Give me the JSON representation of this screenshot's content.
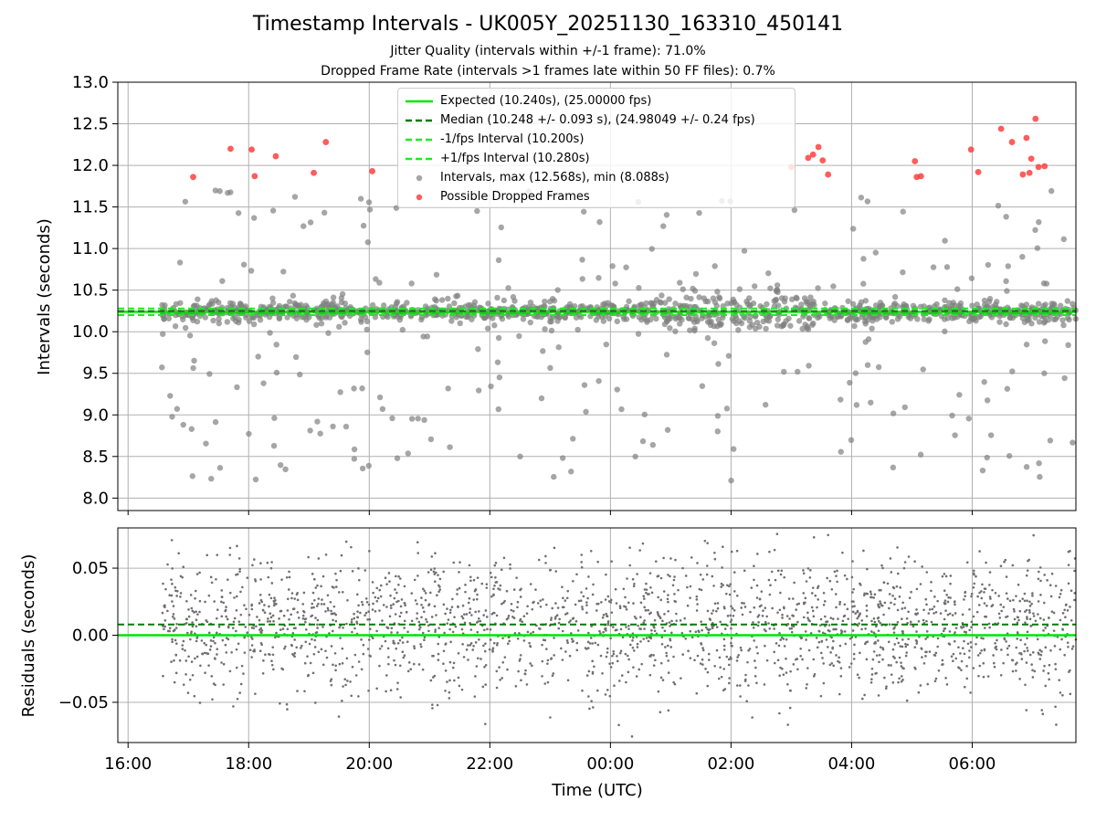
{
  "title": "Timestamp Intervals - UK005Y_20251130_163310_450141",
  "subtitle_jitter": "Jitter Quality (intervals within +/-1 frame): 71.0%",
  "subtitle_dropped": "Dropped Frame Rate (intervals >1 frames late within 50 FF files): 0.7%",
  "colors": {
    "expected": "#00e600",
    "median": "#007a00",
    "interval_bounds": "#22e822",
    "points": "#808080",
    "dropped": "#ff3333",
    "grid": "#b0b0b0"
  },
  "legend": [
    {
      "label": "Expected (10.240s), (25.00000 fps)",
      "style": "solid-line",
      "color": "#00e600"
    },
    {
      "label": "Median (10.248 +/- 0.093 s), (24.98049 +/- 0.24 fps)",
      "style": "dashed-line",
      "color": "#007a00"
    },
    {
      "label": "-1/fps Interval (10.200s)",
      "style": "dashed-line",
      "color": "#22e822"
    },
    {
      "label": "+1/fps Interval (10.280s)",
      "style": "dashed-line",
      "color": "#22e822"
    },
    {
      "label": "Intervals, max (12.568s), min (8.088s)",
      "style": "marker",
      "color": "#808080"
    },
    {
      "label": "Possible Dropped Frames",
      "style": "marker",
      "color": "#ff3333"
    }
  ],
  "chart_data": [
    {
      "type": "scatter",
      "title": "Timestamp Intervals - UK005Y_20251130_163310_450141",
      "xlabel": "",
      "ylabel": "Intervals (seconds)",
      "xlim_hours": [
        15.83,
        31.72
      ],
      "ylim": [
        7.85,
        13.0
      ],
      "yticks": [
        8.0,
        8.5,
        9.0,
        9.5,
        10.0,
        10.5,
        11.0,
        11.5,
        12.0,
        12.5,
        13.0
      ],
      "ytick_labels": [
        "8.0",
        "8.5",
        "9.0",
        "9.5",
        "10.0",
        "10.5",
        "11.0",
        "11.5",
        "12.0",
        "12.5",
        "13.0"
      ],
      "xticks_hours": [
        16,
        18,
        20,
        22,
        24,
        26,
        28,
        30
      ],
      "grid": true,
      "legend_position": "top-center",
      "lines": {
        "expected": 10.24,
        "median": 10.248,
        "minus_1_fps": 10.2,
        "plus_1_fps": 10.28
      },
      "series_summary": {
        "max": 12.568,
        "min": 8.088,
        "start_hours": 16.55,
        "end_hours": 31.72
      },
      "dropped_frames": [
        {
          "t": 17.08,
          "v": 11.86
        },
        {
          "t": 17.7,
          "v": 12.2
        },
        {
          "t": 18.05,
          "v": 12.19
        },
        {
          "t": 18.1,
          "v": 11.87
        },
        {
          "t": 18.45,
          "v": 12.11
        },
        {
          "t": 19.08,
          "v": 11.91
        },
        {
          "t": 19.28,
          "v": 12.28
        },
        {
          "t": 20.05,
          "v": 11.93
        },
        {
          "t": 27.0,
          "v": 11.98
        },
        {
          "t": 27.28,
          "v": 12.09
        },
        {
          "t": 27.36,
          "v": 12.13
        },
        {
          "t": 27.45,
          "v": 12.22
        },
        {
          "t": 27.52,
          "v": 12.06
        },
        {
          "t": 27.61,
          "v": 11.89
        },
        {
          "t": 29.05,
          "v": 12.05
        },
        {
          "t": 29.08,
          "v": 11.86
        },
        {
          "t": 29.15,
          "v": 11.87
        },
        {
          "t": 29.98,
          "v": 12.19
        },
        {
          "t": 30.1,
          "v": 11.92
        },
        {
          "t": 30.48,
          "v": 12.44
        },
        {
          "t": 30.66,
          "v": 12.28
        },
        {
          "t": 30.9,
          "v": 12.33
        },
        {
          "t": 30.95,
          "v": 11.91
        },
        {
          "t": 30.98,
          "v": 12.08
        },
        {
          "t": 31.05,
          "v": 12.56
        },
        {
          "t": 31.1,
          "v": 11.98
        },
        {
          "t": 31.2,
          "v": 11.99
        },
        {
          "t": 30.84,
          "v": 11.89
        }
      ]
    },
    {
      "type": "scatter",
      "xlabel": "Time (UTC)",
      "ylabel": "Residuals (seconds)",
      "xlim_hours": [
        15.83,
        31.72
      ],
      "ylim": [
        -0.08,
        0.08
      ],
      "yticks": [
        -0.05,
        0.0,
        0.05
      ],
      "ytick_labels": [
        "−0.05",
        "0.00",
        "0.05"
      ],
      "xticks_hours": [
        16,
        18,
        20,
        22,
        24,
        26,
        28,
        30
      ],
      "xtick_labels": [
        "16:00",
        "18:00",
        "20:00",
        "22:00",
        "00:00",
        "02:00",
        "04:00",
        "06:00"
      ],
      "grid": true,
      "lines": {
        "expected": 0.0,
        "median": 0.008
      }
    }
  ]
}
